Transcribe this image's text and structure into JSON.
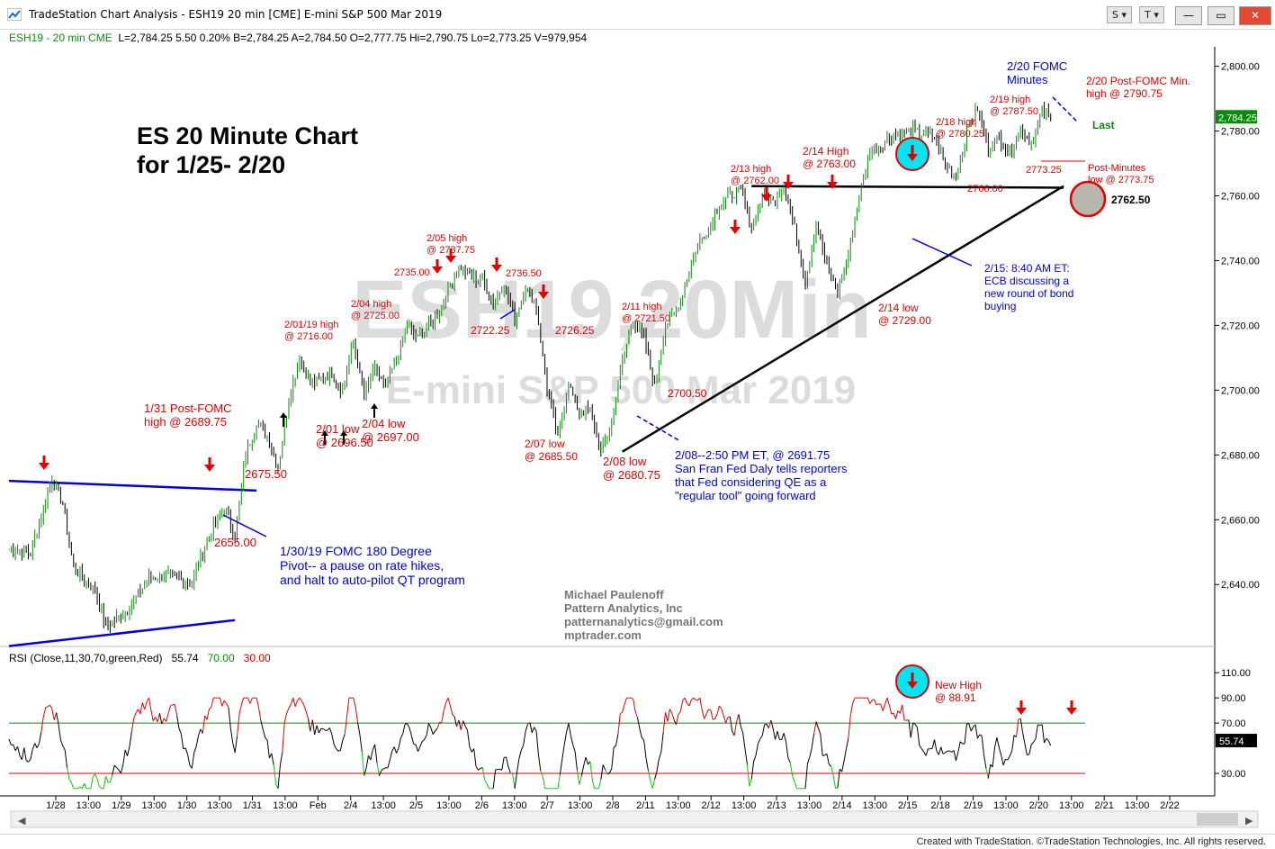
{
  "window": {
    "title": "TradeStation Chart Analysis - ESH19 20 min [CME] E-mini S&P 500 Mar 2019",
    "btn_s": "S",
    "btn_t": "T",
    "footer": "Created with TradeStation. ©TradeStation Technologies, Inc. All rights reserved."
  },
  "infobar": {
    "symbol": "ESH19 - 20 min  CME",
    "values": "L=2,784.25  5.50   0.20%   B=2,784.25  A=2,784.50  O=2,777.75  Hi=2,790.75  Lo=2,773.25  V=979,954"
  },
  "rsibar": {
    "label": "RSI (Close,11,30,70,green,Red)",
    "value": "55.74",
    "ob": "70.00",
    "os": "30.00"
  },
  "chart_data": [
    {
      "type": "candlestick",
      "title": "ES 20 Minute Chart\nfor 1/25- 2/20",
      "watermark": "ESH19,20Min",
      "watermark2": "E-mini S&P 500 Mar 2019",
      "ylim": [
        2622,
        2806
      ],
      "yticks": [
        "2,800.00",
        "2,780.00",
        "2,760.00",
        "2,740.00",
        "2,720.00",
        "2,700.00",
        "2,680.00",
        "2,660.00",
        "2,640.00"
      ],
      "last_value": "2,784.25",
      "xticks": [
        "1/28",
        "13:00",
        "1/29",
        "13:00",
        "1/30",
        "13:00",
        "1/31",
        "13:00",
        "Feb",
        "2/4",
        "13:00",
        "2/5",
        "13:00",
        "2/6",
        "13:00",
        "2/7",
        "13:00",
        "2/8",
        "2/11",
        "13:00",
        "2/12",
        "13:00",
        "2/13",
        "13:00",
        "2/14",
        "13:00",
        "2/15",
        "2/18",
        "2/19",
        "13:00",
        "2/20",
        "13:00",
        "2/21",
        "13:00",
        "2/22"
      ],
      "x_domain": [
        0,
        100
      ],
      "price_path": [
        [
          0,
          2651
        ],
        [
          2,
          2650
        ],
        [
          3,
          2661
        ],
        [
          4,
          2673
        ],
        [
          5,
          2665
        ],
        [
          6,
          2645
        ],
        [
          8,
          2638
        ],
        [
          9,
          2627
        ],
        [
          11,
          2632
        ],
        [
          13,
          2642
        ],
        [
          15,
          2643
        ],
        [
          17,
          2640
        ],
        [
          18,
          2650
        ],
        [
          19,
          2658
        ],
        [
          20,
          2664
        ],
        [
          21,
          2655
        ],
        [
          22,
          2680
        ],
        [
          23,
          2690
        ],
        [
          24,
          2686
        ],
        [
          25,
          2676
        ],
        [
          26,
          2697
        ],
        [
          27,
          2710
        ],
        [
          28,
          2702
        ],
        [
          30,
          2705
        ],
        [
          31,
          2700
        ],
        [
          32,
          2715
        ],
        [
          33,
          2698
        ],
        [
          34,
          2707
        ],
        [
          35,
          2700
        ],
        [
          37,
          2720
        ],
        [
          38,
          2716
        ],
        [
          40,
          2724
        ],
        [
          41,
          2733
        ],
        [
          42,
          2738
        ],
        [
          43,
          2735
        ],
        [
          44,
          2734
        ],
        [
          45,
          2727
        ],
        [
          46,
          2733
        ],
        [
          47,
          2722
        ],
        [
          48,
          2732
        ],
        [
          49,
          2726
        ],
        [
          50,
          2700
        ],
        [
          51,
          2686
        ],
        [
          52,
          2702
        ],
        [
          53,
          2693
        ],
        [
          54,
          2694
        ],
        [
          55,
          2681
        ],
        [
          56,
          2690
        ],
        [
          57,
          2709
        ],
        [
          58,
          2722
        ],
        [
          59,
          2716
        ],
        [
          60,
          2701
        ],
        [
          61,
          2720
        ],
        [
          62,
          2724
        ],
        [
          64,
          2745
        ],
        [
          65,
          2750
        ],
        [
          66,
          2757
        ],
        [
          67,
          2760
        ],
        [
          68,
          2762
        ],
        [
          69,
          2750
        ],
        [
          70,
          2760
        ],
        [
          71,
          2758
        ],
        [
          72,
          2764
        ],
        [
          73,
          2750
        ],
        [
          74,
          2733
        ],
        [
          75,
          2752
        ],
        [
          76,
          2738
        ],
        [
          77,
          2730
        ],
        [
          78,
          2742
        ],
        [
          79,
          2760
        ],
        [
          80,
          2774
        ],
        [
          81,
          2775
        ],
        [
          82,
          2779
        ],
        [
          84,
          2780
        ],
        [
          86,
          2778
        ],
        [
          87,
          2770
        ],
        [
          88,
          2766
        ],
        [
          89,
          2780
        ],
        [
          90,
          2787
        ],
        [
          91,
          2775
        ],
        [
          92,
          2778
        ],
        [
          93,
          2773
        ],
        [
          94,
          2781
        ],
        [
          95,
          2776
        ],
        [
          96,
          2786
        ],
        [
          97,
          2784
        ]
      ],
      "trendlines": [
        {
          "from": [
            0,
            2672
          ],
          "to": [
            23,
            2669
          ],
          "color": "blue"
        },
        {
          "from": [
            0,
            2621
          ],
          "to": [
            21,
            2629
          ],
          "color": "blue"
        },
        {
          "from": [
            57,
            2681
          ],
          "to": [
            98,
            2763
          ],
          "color": "black"
        },
        {
          "from": [
            69,
            2763
          ],
          "to": [
            98,
            2762.5
          ],
          "color": "black"
        }
      ],
      "annotations_red": [
        "2/20 Post-FOMC Min.\nhigh  @ 2790.75",
        "2/19 high\n@ 2787.50",
        "2/18 high\n@ 2780.25",
        "2/14 High\n@ 2763.00",
        "2/13 high\n@ 2762.00",
        "2773.25",
        "Post-Minutes\nlow @ 2773.75",
        "2766.00",
        "2/05 high\n@ 2737.75",
        "2735.00",
        "2736.50",
        "2/04 high\n@ 2725.00",
        "2/01/19 high\n@ 2716.00",
        "2722.25",
        "2726.25",
        "2/11 high\n@ 2721.50",
        "2/14 low\n@ 2729.00",
        "2700.50",
        "1/31 Post-FOMC\nhigh @ 2689.75",
        "2675.50",
        "2/01 low\n@ 2696.50",
        "2/04 low\n@ 2697.00",
        "2/07 low\n@ 2685.50",
        "2/08 low\n@ 2680.75",
        "2655.00"
      ],
      "annotations_blue": [
        "2/20 FOMC\nMinutes",
        "2/15: 8:40 AM ET:\nECB discussing a\nnew round of bond\nbuying",
        "2/08--2:50 PM ET, @ 2691.75\nSan Fran Fed Daly tells reporters\nthat Fed considering QE as a\n\"regular tool\" going forward",
        "1/30/19 FOMC 180 Degree\nPivot-- a pause on rate hikes,\nand halt to auto-pilot QT program"
      ],
      "label_last": "Last",
      "label_level": "2762.50",
      "credits": "Michael Paulenoff\nPattern Analytics, Inc\npatternanalytics@gmail.com\nmptrader.com"
    },
    {
      "type": "line",
      "name": "RSI",
      "ylim": [
        15,
        118
      ],
      "yticks": [
        "110.00",
        "90.00",
        "70.00",
        "30.00"
      ],
      "last_value": "55.74",
      "overbought": 70,
      "oversold": 30,
      "annotation": "New High\n@ 88.91"
    }
  ]
}
